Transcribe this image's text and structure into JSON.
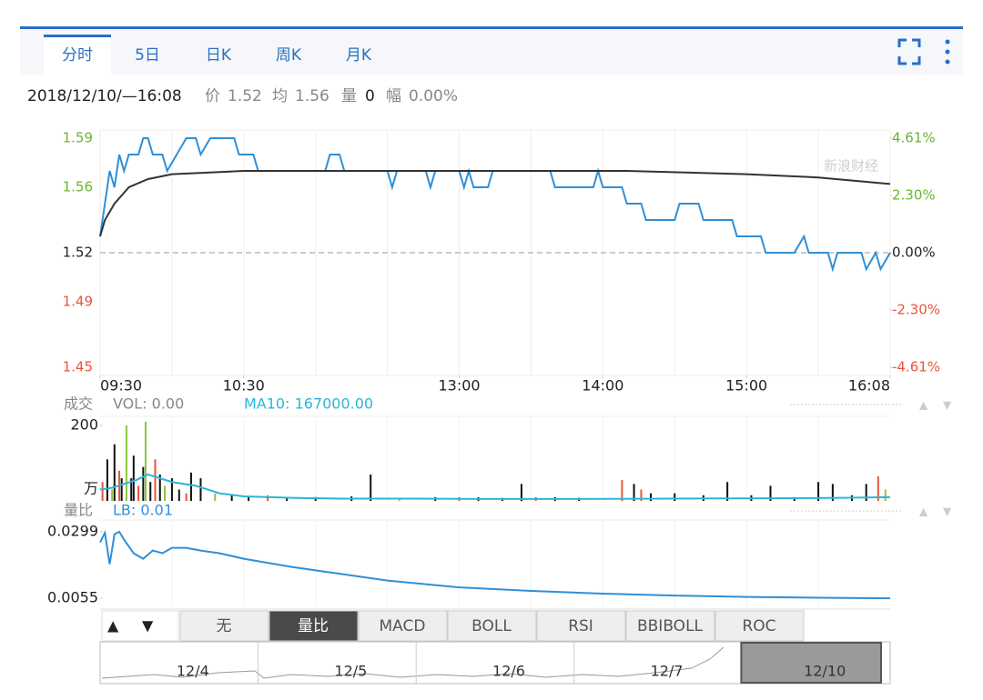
{
  "tabs": [
    "分时",
    "5日",
    "日K",
    "周K",
    "月K"
  ],
  "active_tab": 0,
  "info": {
    "datetime": "2018/12/10/—16:08",
    "price_label": "价",
    "price": "1.52",
    "avg_label": "均",
    "avg": "1.56",
    "vol_label": "量",
    "vol": "0",
    "amp_label": "幅",
    "amp": "0.00%"
  },
  "watermark": "新浪财经",
  "chart_data": [
    {
      "type": "line",
      "xlim": [
        0,
        330
      ],
      "xticks": [
        {
          "value": 0,
          "label": "09:30"
        },
        {
          "value": 60,
          "label": "10:30"
        },
        {
          "value": 150,
          "label": "13:00"
        },
        {
          "value": 210,
          "label": "14:00"
        },
        {
          "value": 270,
          "label": "15:00"
        },
        {
          "value": 330,
          "label": "16:08"
        }
      ],
      "xgrid": [
        30,
        60,
        90,
        120,
        150,
        180,
        210,
        240,
        270,
        300
      ],
      "ylim": [
        1.445,
        1.595
      ],
      "yticks": [
        1.59,
        1.56,
        1.52,
        1.49,
        1.45
      ],
      "y2lim": [
        -4.94,
        4.94
      ],
      "y2ticks": [
        {
          "value": 4.61,
          "label": "4.61%"
        },
        {
          "value": 2.3,
          "label": "2.30%"
        },
        {
          "value": 0,
          "label": "0.00%"
        },
        {
          "value": -2.3,
          "label": "-2.30%"
        },
        {
          "value": -4.61,
          "label": "-4.61%"
        }
      ],
      "base_price": 1.52,
      "up_color": "#6cb52d",
      "down_color": "#e8553e",
      "series": [
        {
          "color": "#2f8fd8",
          "x": [
            0,
            2,
            4,
            6,
            8,
            10,
            12,
            16,
            18,
            20,
            22,
            26,
            28,
            32,
            36,
            40,
            42,
            46,
            56,
            58,
            64,
            66,
            94,
            96,
            100,
            102,
            120,
            122,
            124,
            136,
            138,
            140,
            150,
            152,
            154,
            156,
            162,
            164,
            188,
            190,
            206,
            208,
            210,
            218,
            220,
            226,
            228,
            240,
            242,
            250,
            252,
            264,
            266,
            276,
            278,
            290,
            294,
            296,
            304,
            306,
            308,
            318,
            320,
            324,
            326,
            330
          ],
          "values": [
            1.53,
            1.55,
            1.57,
            1.56,
            1.58,
            1.57,
            1.58,
            1.58,
            1.59,
            1.59,
            1.58,
            1.58,
            1.57,
            1.58,
            1.59,
            1.59,
            1.58,
            1.59,
            1.59,
            1.58,
            1.58,
            1.57,
            1.57,
            1.58,
            1.58,
            1.57,
            1.57,
            1.56,
            1.57,
            1.57,
            1.56,
            1.57,
            1.57,
            1.56,
            1.57,
            1.56,
            1.56,
            1.57,
            1.57,
            1.56,
            1.56,
            1.57,
            1.56,
            1.56,
            1.55,
            1.55,
            1.54,
            1.54,
            1.55,
            1.55,
            1.54,
            1.54,
            1.53,
            1.53,
            1.52,
            1.52,
            1.53,
            1.52,
            1.52,
            1.51,
            1.52,
            1.52,
            1.51,
            1.52,
            1.51,
            1.52
          ]
        },
        {
          "color": "#333333",
          "x": [
            0,
            2,
            6,
            12,
            20,
            30,
            60,
            150,
            220,
            270,
            300,
            330
          ],
          "values": [
            1.53,
            1.54,
            1.55,
            1.56,
            1.565,
            1.568,
            1.57,
            1.57,
            1.57,
            1.568,
            1.566,
            1.562
          ]
        }
      ]
    },
    {
      "type": "bar",
      "title": "成交",
      "legend": [
        "VOL: 0.00",
        "MA10: 167000.00"
      ],
      "legend_colors": [
        "#888888",
        "#29b6d8"
      ],
      "ylim": [
        0,
        224
      ],
      "yticks": [
        200
      ],
      "y_unit": "万",
      "x": [
        1,
        3,
        5,
        6,
        8,
        9,
        11,
        13,
        14,
        16,
        18,
        19,
        21,
        23,
        25,
        27,
        30,
        33,
        36,
        38,
        42,
        48,
        55,
        62,
        70,
        78,
        90,
        105,
        113,
        125,
        140,
        150,
        158,
        168,
        176,
        182,
        190,
        200,
        218,
        223,
        226,
        230,
        240,
        252,
        262,
        272,
        280,
        290,
        300,
        306,
        314,
        320,
        325,
        328
      ],
      "values": [
        50,
        110,
        30,
        150,
        80,
        60,
        200,
        60,
        120,
        40,
        90,
        210,
        50,
        110,
        70,
        40,
        60,
        30,
        20,
        75,
        60,
        20,
        15,
        12,
        15,
        10,
        10,
        12,
        70,
        8,
        10,
        10,
        10,
        8,
        45,
        10,
        10,
        8,
        55,
        45,
        30,
        20,
        20,
        15,
        50,
        15,
        40,
        10,
        50,
        45,
        15,
        45,
        65,
        30
      ],
      "colors": [
        "#e8553e",
        "#111111",
        "#8cc63f",
        "#111111",
        "#e8553e",
        "#111111",
        "#8cc63f",
        "#111111",
        "#111111",
        "#e8553e",
        "#111111",
        "#8cc63f",
        "#111111",
        "#e8553e",
        "#111111",
        "#8cc63f",
        "#111111",
        "#111111",
        "#e8553e",
        "#111111",
        "#111111",
        "#8cc63f",
        "#111111",
        "#111111",
        "#e8553e",
        "#111111",
        "#111111",
        "#111111",
        "#111111",
        "#8cc63f",
        "#111111",
        "#e8553e",
        "#111111",
        "#111111",
        "#111111",
        "#e8553e",
        "#111111",
        "#111111",
        "#e8553e",
        "#111111",
        "#e8553e",
        "#111111",
        "#111111",
        "#111111",
        "#111111",
        "#111111",
        "#111111",
        "#111111",
        "#111111",
        "#111111",
        "#111111",
        "#111111",
        "#e8553e",
        "#8cc63f"
      ],
      "ma10": {
        "color": "#29b6d8",
        "x": [
          0,
          5,
          10,
          15,
          20,
          25,
          30,
          40,
          50,
          60,
          80,
          100,
          130,
          160,
          200,
          240,
          280,
          310,
          330
        ],
        "values": [
          30,
          35,
          45,
          55,
          70,
          60,
          50,
          40,
          20,
          12,
          8,
          6,
          6,
          5,
          5,
          6,
          7,
          8,
          10
        ]
      }
    },
    {
      "type": "line",
      "title": "量比",
      "legend": [
        "LB: 0.01"
      ],
      "legend_colors": [
        "#2f8fd8"
      ],
      "ylim": [
        0.0022,
        0.0342
      ],
      "yticks": [
        0.0299,
        0.0055
      ],
      "series": [
        {
          "color": "#2f8fd8",
          "x": [
            0,
            2,
            4,
            6,
            8,
            10,
            14,
            18,
            22,
            26,
            30,
            36,
            42,
            50,
            60,
            80,
            100,
            120,
            150,
            180,
            210,
            240,
            270,
            300,
            330
          ],
          "values": [
            0.026,
            0.0295,
            0.018,
            0.029,
            0.0299,
            0.027,
            0.022,
            0.02,
            0.023,
            0.022,
            0.024,
            0.024,
            0.023,
            0.022,
            0.02,
            0.017,
            0.0145,
            0.012,
            0.0095,
            0.0082,
            0.0072,
            0.0065,
            0.006,
            0.0057,
            0.0055
          ]
        }
      ]
    }
  ],
  "indicator_tabs": [
    "无",
    "量比",
    "MACD",
    "BOLL",
    "RSI",
    "BBIBOLL",
    "ROC"
  ],
  "active_indicator": 1,
  "navigator": {
    "dates": [
      "12/4",
      "12/5",
      "12/6",
      "12/7",
      "12/10"
    ],
    "selected": 4
  }
}
